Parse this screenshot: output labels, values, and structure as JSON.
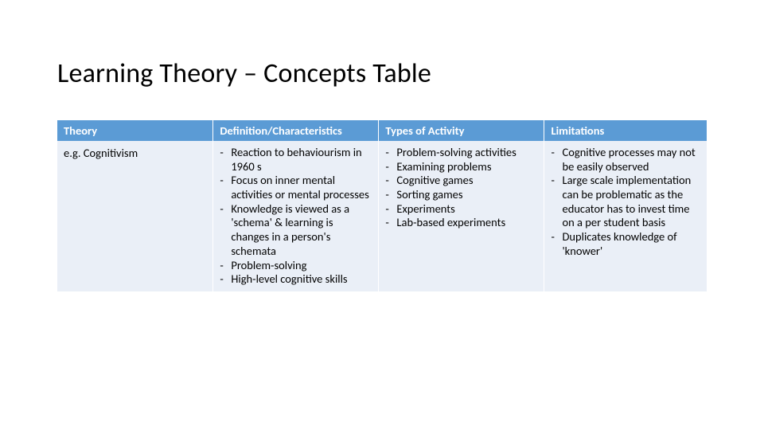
{
  "title": "Learning Theory – Concepts Table",
  "colors": {
    "header_bg": "#5b9bd5",
    "header_fg": "#ffffff",
    "cell_bg": "#eaeff7",
    "text": "#000000",
    "page_bg": "#ffffff"
  },
  "table": {
    "columns": [
      {
        "key": "theory",
        "header": "Theory"
      },
      {
        "key": "definition",
        "header": "Definition/Characteristics"
      },
      {
        "key": "types",
        "header": "Types of Activity"
      },
      {
        "key": "limitations",
        "header": "Limitations"
      }
    ],
    "rows": [
      {
        "theory": "e.g. Cognitivism",
        "definition": [
          "Reaction to behaviourism in 1960 s",
          "Focus on inner mental activities or mental processes",
          "Knowledge is viewed as a 'schema' & learning is changes in a person's schemata",
          "Problem-solving",
          "High-level cognitive skills"
        ],
        "types": [
          "Problem-solving activities",
          "Examining problems",
          "Cognitive games",
          "Sorting games",
          "Experiments",
          "Lab-based experiments"
        ],
        "limitations": [
          "Cognitive processes may not be easily observed",
          "Large scale implementation can be problematic as the educator has to invest time on a per student basis",
          "Duplicates knowledge of 'knower'"
        ]
      }
    ]
  }
}
